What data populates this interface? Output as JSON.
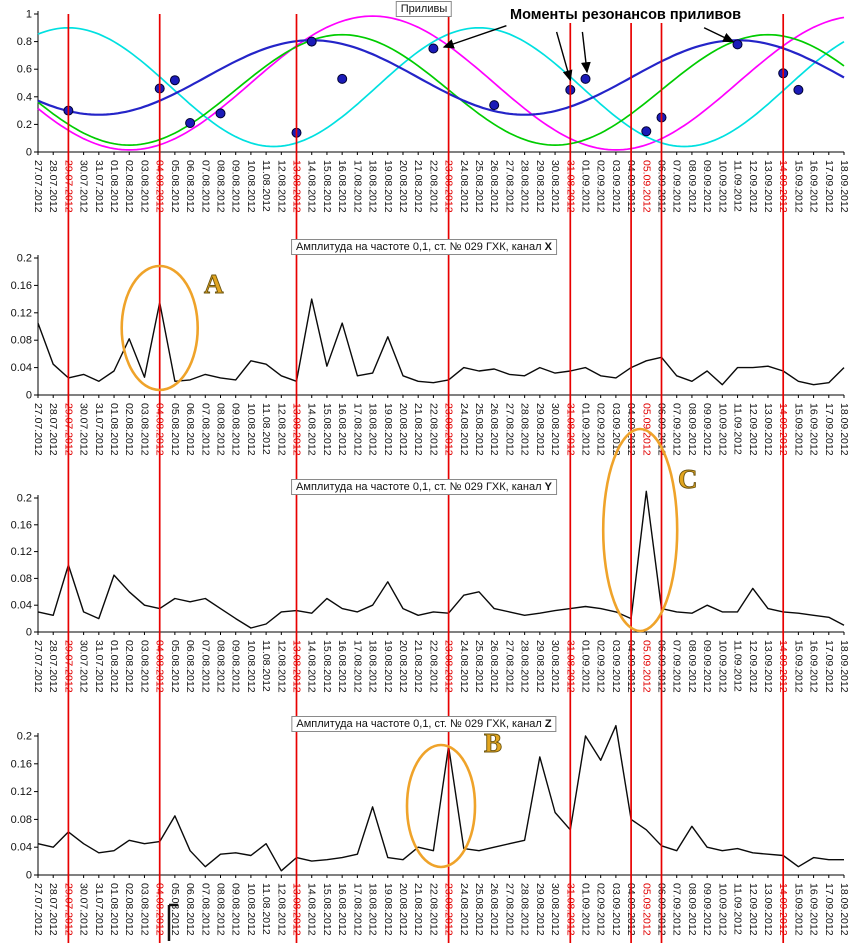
{
  "colors": {
    "red_line": "#e80000",
    "red_label": "#e00000",
    "ellipse": "#efa32a",
    "letter_fill": "#e2a51f",
    "dot": "#1b1bb8",
    "amp_line": "#0a0a0a"
  },
  "annotations": {
    "resonance_heading": "Моменты резонансов приливов",
    "arrows": [
      {
        "from": [
          30.8,
          0.915
        ],
        "to": [
          26.7,
          0.76
        ]
      },
      {
        "from": [
          34.1,
          0.87
        ],
        "to": [
          35.0,
          0.52
        ]
      },
      {
        "from": [
          35.8,
          0.87
        ],
        "to": [
          36.1,
          0.58
        ]
      },
      {
        "from": [
          43.8,
          0.9
        ],
        "to": [
          45.7,
          0.8
        ]
      }
    ],
    "ellipses": [
      {
        "label": "A",
        "panel": "channel-x",
        "day": 8
      },
      {
        "label": "B",
        "panel": "channel-z",
        "day": 26.5
      },
      {
        "label": "C",
        "panel": "channel-y",
        "day": 39.6
      }
    ]
  },
  "chart_data": {
    "type": "line",
    "dates": [
      "27.07.2012",
      "28.07.2012",
      "29.07.2012",
      "30.07.2012",
      "31.07.2012",
      "01.08.2012",
      "02.08.2012",
      "03.08.2012",
      "04.08.2012",
      "05.08.2012",
      "06.08.2012",
      "07.08.2012",
      "08.08.2012",
      "09.08.2012",
      "10.08.2012",
      "11.08.2012",
      "12.08.2012",
      "13.08.2012",
      "14.08.2012",
      "15.08.2012",
      "16.08.2012",
      "17.08.2012",
      "18.08.2012",
      "19.08.2012",
      "20.08.2012",
      "21.08.2012",
      "22.08.2012",
      "23.08.2012",
      "24.08.2012",
      "25.08.2012",
      "26.08.2012",
      "27.08.2012",
      "28.08.2012",
      "29.08.2012",
      "30.08.2012",
      "31.08.2012",
      "01.09.2012",
      "02.09.2012",
      "03.09.2012",
      "04.09.2012",
      "05.09.2012",
      "06.09.2012",
      "07.09.2012",
      "08.09.2012",
      "09.09.2012",
      "10.09.2012",
      "11.09.2012",
      "12.09.2012",
      "13.09.2012",
      "14.09.2012",
      "15.09.2012",
      "16.09.2012",
      "17.09.2012",
      "18.09.2012"
    ],
    "red_line_days": [
      2,
      8,
      17,
      27,
      35,
      39,
      41,
      49
    ],
    "red_label_days": [
      2,
      8,
      17,
      27,
      35,
      40,
      49
    ],
    "panels": [
      {
        "id": "tides",
        "title": "Приливы",
        "ylim": [
          0,
          1
        ],
        "yticks": [
          [
            0,
            "0"
          ],
          [
            0.2,
            "0.2"
          ],
          [
            0.4,
            "0.4"
          ],
          [
            0.6,
            "0.6"
          ],
          [
            0.8,
            "0.8"
          ],
          [
            1,
            "1"
          ]
        ],
        "series": [
          {
            "name": "tide-magenta",
            "color": "#ff00ff",
            "width": 1.7,
            "sine": {
              "offset": 0.5,
              "amplitude": 0.485,
              "period_days": 32,
              "peak_day": 22
            }
          },
          {
            "name": "tide-cyan",
            "color": "#00e0e0",
            "width": 1.7,
            "sine": {
              "offset": 0.47,
              "amplitude": 0.43,
              "period_days": 27,
              "peak_day": 2
            }
          },
          {
            "name": "tide-green",
            "color": "#00cc00",
            "width": 1.7,
            "sine": {
              "offset": 0.45,
              "amplitude": 0.4,
              "period_days": 28,
              "peak_day": 20
            }
          },
          {
            "name": "tide-blue",
            "color": "#2424c8",
            "width": 2.2,
            "sine": {
              "offset": 0.54,
              "amplitude": 0.27,
              "period_days": 28,
              "peak_day": 18
            }
          }
        ],
        "resonance_dots": [
          [
            2,
            0.3
          ],
          [
            8,
            0.46
          ],
          [
            9,
            0.52
          ],
          [
            10,
            0.21
          ],
          [
            12,
            0.28
          ],
          [
            17,
            0.14
          ],
          [
            18,
            0.8
          ],
          [
            20,
            0.53
          ],
          [
            26,
            0.75
          ],
          [
            30,
            0.34
          ],
          [
            35,
            0.45
          ],
          [
            36,
            0.53
          ],
          [
            40,
            0.15
          ],
          [
            41,
            0.25
          ],
          [
            46,
            0.78
          ],
          [
            49,
            0.57
          ],
          [
            50,
            0.45
          ]
        ]
      },
      {
        "id": "channel-x",
        "title_prefix": "Амплитуда на частоте 0,1, ст. № 029 ГХК, канал ",
        "channel": "X",
        "ylim": [
          0,
          0.2
        ],
        "yticks": [
          [
            0,
            "0"
          ],
          [
            0.04,
            "0.04"
          ],
          [
            0.08,
            "0.08"
          ],
          [
            0.12,
            "0.12"
          ],
          [
            0.16,
            "0.16"
          ],
          [
            0.2,
            "0.2"
          ]
        ],
        "values": [
          0.105,
          0.045,
          0.025,
          0.03,
          0.02,
          0.035,
          0.082,
          0.026,
          0.135,
          0.02,
          0.022,
          0.03,
          0.025,
          0.022,
          0.05,
          0.045,
          0.028,
          0.02,
          0.14,
          0.042,
          0.105,
          0.028,
          0.032,
          0.085,
          0.028,
          0.02,
          0.018,
          0.022,
          0.04,
          0.035,
          0.038,
          0.03,
          0.028,
          0.04,
          0.032,
          0.035,
          0.04,
          0.028,
          0.025,
          0.04,
          0.05,
          0.055,
          0.028,
          0.02,
          0.035,
          0.015,
          0.04,
          0.04,
          0.042,
          0.035,
          0.02,
          0.015,
          0.018,
          0.04
        ]
      },
      {
        "id": "channel-y",
        "title_prefix": "Амплитуда на частоте 0,1, ст. № 029 ГХК, канал ",
        "channel": "Y",
        "ylim": [
          0,
          0.2
        ],
        "yticks": [
          [
            0,
            "0"
          ],
          [
            0.04,
            "0.04"
          ],
          [
            0.08,
            "0.08"
          ],
          [
            0.12,
            "0.12"
          ],
          [
            0.16,
            "0.16"
          ],
          [
            0.2,
            "0.2"
          ]
        ],
        "values": [
          0.03,
          0.025,
          0.1,
          0.03,
          0.02,
          0.085,
          0.06,
          0.04,
          0.035,
          0.05,
          0.045,
          0.05,
          0.035,
          0.02,
          0.006,
          0.012,
          0.03,
          0.032,
          0.028,
          0.05,
          0.035,
          0.03,
          0.04,
          0.075,
          0.035,
          0.025,
          0.03,
          0.028,
          0.055,
          0.06,
          0.035,
          0.03,
          0.025,
          0.028,
          0.032,
          0.035,
          0.038,
          0.035,
          0.03,
          0.02,
          0.21,
          0.035,
          0.03,
          0.028,
          0.04,
          0.03,
          0.03,
          0.065,
          0.035,
          0.03,
          0.028,
          0.025,
          0.022,
          0.01
        ]
      },
      {
        "id": "channel-z",
        "title_prefix": "Амплитуда на частоте 0,1, ст. № 029 ГХК, канал ",
        "channel": "Z",
        "ylim": [
          0,
          0.2
        ],
        "yticks": [
          [
            0,
            "0"
          ],
          [
            0.04,
            "0.04"
          ],
          [
            0.08,
            "0.08"
          ],
          [
            0.12,
            "0.12"
          ],
          [
            0.16,
            "0.16"
          ],
          [
            0.2,
            "0.2"
          ]
        ],
        "values": [
          0.045,
          0.04,
          0.062,
          0.045,
          0.032,
          0.035,
          0.05,
          0.045,
          0.048,
          0.085,
          0.035,
          0.012,
          0.03,
          0.032,
          0.028,
          0.045,
          0.006,
          0.025,
          0.02,
          0.022,
          0.025,
          0.03,
          0.098,
          0.025,
          0.022,
          0.04,
          0.035,
          0.185,
          0.038,
          0.035,
          0.04,
          0.045,
          0.05,
          0.17,
          0.09,
          0.065,
          0.2,
          0.165,
          0.215,
          0.08,
          0.065,
          0.042,
          0.035,
          0.07,
          0.04,
          0.035,
          0.038,
          0.032,
          0.03,
          0.028,
          0.012,
          0.025,
          0.022,
          0.022
        ]
      }
    ]
  }
}
